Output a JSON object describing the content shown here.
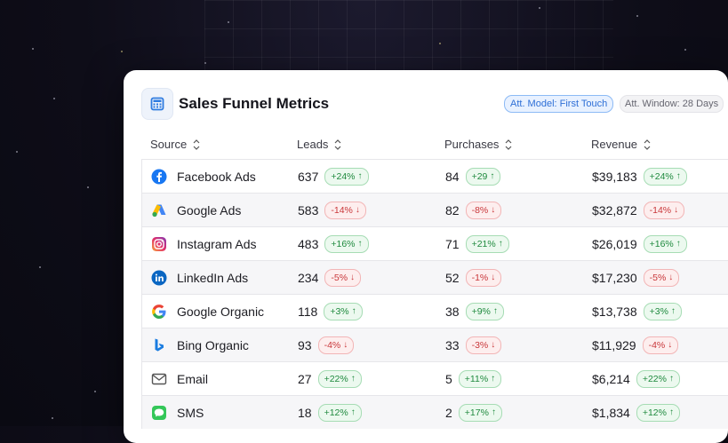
{
  "colors": {
    "accent": "#2e6fd6",
    "up": "#1f8a3e",
    "down": "#c9373a"
  },
  "header": {
    "title": "Sales Funnel Metrics",
    "icon": "calculator-icon",
    "model_label": "Att. Model: First Touch",
    "window_label": "Att. Window: 28 Days"
  },
  "columns": {
    "source": "Source",
    "leads": "Leads",
    "purchases": "Purchases",
    "revenue": "Revenue"
  },
  "rows": [
    {
      "icon": "facebook-icon",
      "source": "Facebook Ads",
      "leads": "637",
      "leads_delta": "+24%",
      "leads_dir": "up",
      "purchases": "84",
      "purchases_delta": "+29",
      "purchases_dir": "up",
      "revenue": "$39,183",
      "revenue_delta": "+24%",
      "revenue_dir": "up"
    },
    {
      "icon": "google-ads-icon",
      "source": "Google Ads",
      "leads": "583",
      "leads_delta": "-14%",
      "leads_dir": "down",
      "purchases": "82",
      "purchases_delta": "-8%",
      "purchases_dir": "down",
      "revenue": "$32,872",
      "revenue_delta": "-14%",
      "revenue_dir": "down"
    },
    {
      "icon": "instagram-icon",
      "source": "Instagram Ads",
      "leads": "483",
      "leads_delta": "+16%",
      "leads_dir": "up",
      "purchases": "71",
      "purchases_delta": "+21%",
      "purchases_dir": "up",
      "revenue": "$26,019",
      "revenue_delta": "+16%",
      "revenue_dir": "up"
    },
    {
      "icon": "linkedin-icon",
      "source": "LinkedIn Ads",
      "leads": "234",
      "leads_delta": "-5%",
      "leads_dir": "down",
      "purchases": "52",
      "purchases_delta": "-1%",
      "purchases_dir": "down",
      "revenue": "$17,230",
      "revenue_delta": "-5%",
      "revenue_dir": "down"
    },
    {
      "icon": "google-icon",
      "source": "Google Organic",
      "leads": "118",
      "leads_delta": "+3%",
      "leads_dir": "up",
      "purchases": "38",
      "purchases_delta": "+9%",
      "purchases_dir": "up",
      "revenue": "$13,738",
      "revenue_delta": "+3%",
      "revenue_dir": "up"
    },
    {
      "icon": "bing-icon",
      "source": "Bing Organic",
      "leads": "93",
      "leads_delta": "-4%",
      "leads_dir": "down",
      "purchases": "33",
      "purchases_delta": "-3%",
      "purchases_dir": "down",
      "revenue": "$11,929",
      "revenue_delta": "-4%",
      "revenue_dir": "down"
    },
    {
      "icon": "email-icon",
      "source": "Email",
      "leads": "27",
      "leads_delta": "+22%",
      "leads_dir": "up",
      "purchases": "5",
      "purchases_delta": "+11%",
      "purchases_dir": "up",
      "revenue": "$6,214",
      "revenue_delta": "+22%",
      "revenue_dir": "up"
    },
    {
      "icon": "sms-icon",
      "source": "SMS",
      "leads": "18",
      "leads_delta": "+12%",
      "leads_dir": "up",
      "purchases": "2",
      "purchases_delta": "+17%",
      "purchases_dir": "up",
      "revenue": "$1,834",
      "revenue_delta": "+12%",
      "revenue_dir": "up"
    }
  ]
}
